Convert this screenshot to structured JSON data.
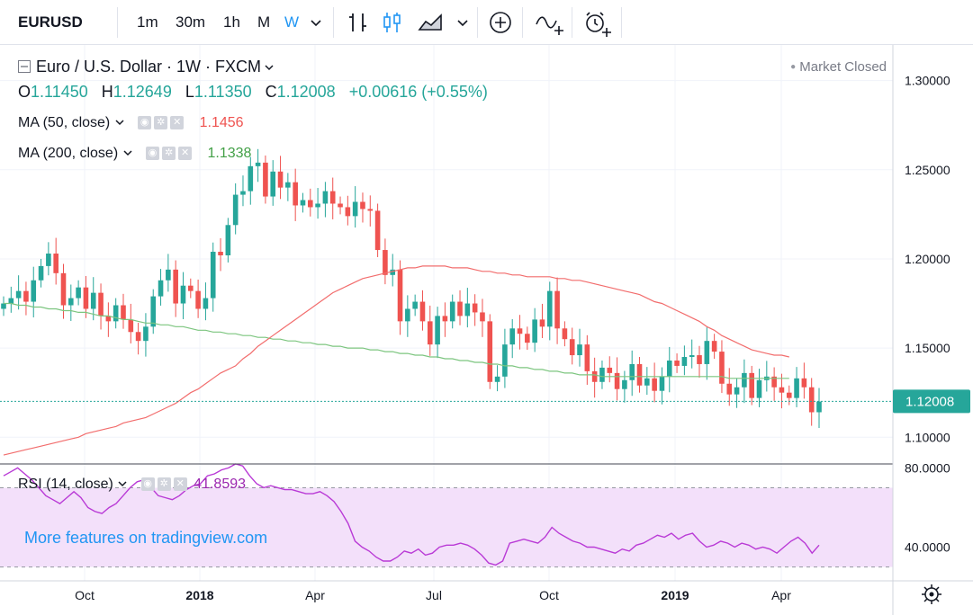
{
  "toolbar": {
    "symbol": "EURUSD",
    "intervals": [
      "1m",
      "30m",
      "1h",
      "M",
      "W"
    ],
    "active_interval": "W"
  },
  "legend": {
    "title": "Euro / U.S. Dollar · 1W · FXCM",
    "status": "Market Closed",
    "ohlc": {
      "o_label": "O",
      "o_value": "1.11450",
      "h_label": "H",
      "h_value": "1.12649",
      "l_label": "L",
      "l_value": "1.11350",
      "c_label": "C",
      "c_value": "1.12008",
      "change": "+0.00616 (+0.55%)"
    }
  },
  "indicators": [
    {
      "label": "MA (50, close)",
      "value": "1.1456",
      "color": "#ef5350"
    },
    {
      "label": "MA (200, close)",
      "value": "1.1338",
      "color": "#43a047"
    },
    {
      "label": "RSI (14, close)",
      "value": "41.8593",
      "color": "#9c27b0"
    }
  ],
  "watermark": "More features on tradingview.com",
  "colors": {
    "up": "#26a69a",
    "down": "#ef5350",
    "ma50": "#f26d6d",
    "ma200": "#7cc57f",
    "rsi": "#b93ad6",
    "rsi_band": "#f3e0fa",
    "last_price": "#26a69a"
  },
  "chart_data": [
    {
      "type": "candlestick",
      "title": "Euro / U.S. Dollar · 1W · FXCM",
      "x_tick_labels": [
        "Oct",
        "2018",
        "Apr",
        "Jul",
        "Oct",
        "2019",
        "Apr"
      ],
      "y_tick_labels": [
        "1.30000",
        "1.25000",
        "1.20000",
        "1.15000",
        "1.10000"
      ],
      "ylim": [
        1.085,
        1.32
      ],
      "last_price": "1.12008",
      "close": [
        1.175,
        1.178,
        1.182,
        1.176,
        1.188,
        1.196,
        1.203,
        1.192,
        1.174,
        1.178,
        1.184,
        1.172,
        1.181,
        1.168,
        1.165,
        1.174,
        1.166,
        1.159,
        1.154,
        1.162,
        1.179,
        1.188,
        1.194,
        1.175,
        1.185,
        1.182,
        1.172,
        1.178,
        1.204,
        1.202,
        1.219,
        1.236,
        1.238,
        1.252,
        1.254,
        1.235,
        1.249,
        1.24,
        1.243,
        1.23,
        1.233,
        1.229,
        1.231,
        1.238,
        1.231,
        1.229,
        1.224,
        1.232,
        1.228,
        1.227,
        1.205,
        1.191,
        1.194,
        1.165,
        1.172,
        1.176,
        1.165,
        1.152,
        1.168,
        1.165,
        1.176,
        1.168,
        1.175,
        1.17,
        1.165,
        1.131,
        1.134,
        1.152,
        1.161,
        1.158,
        1.153,
        1.166,
        1.162,
        1.182,
        1.161,
        1.155,
        1.146,
        1.152,
        1.137,
        1.131,
        1.139,
        1.136,
        1.127,
        1.132,
        1.141,
        1.129,
        1.133,
        1.126,
        1.134,
        1.143,
        1.14,
        1.145,
        1.146,
        1.141,
        1.154,
        1.148,
        1.13,
        1.124,
        1.128,
        1.136,
        1.122,
        1.132,
        1.134,
        1.128,
        1.125,
        1.122,
        1.133,
        1.128,
        1.114,
        1.12
      ],
      "ma50": [
        1.09,
        1.091,
        1.092,
        1.093,
        1.094,
        1.095,
        1.096,
        1.097,
        1.098,
        1.099,
        1.1,
        1.102,
        1.103,
        1.104,
        1.105,
        1.106,
        1.108,
        1.109,
        1.11,
        1.111,
        1.113,
        1.115,
        1.117,
        1.119,
        1.122,
        1.125,
        1.127,
        1.13,
        1.133,
        1.136,
        1.138,
        1.14,
        1.144,
        1.147,
        1.151,
        1.154,
        1.157,
        1.16,
        1.163,
        1.166,
        1.169,
        1.172,
        1.175,
        1.178,
        1.181,
        1.183,
        1.185,
        1.187,
        1.189,
        1.19,
        1.191,
        1.192,
        1.193,
        1.194,
        1.195,
        1.195,
        1.196,
        1.196,
        1.196,
        1.196,
        1.195,
        1.195,
        1.195,
        1.194,
        1.193,
        1.193,
        1.192,
        1.192,
        1.191,
        1.191,
        1.19,
        1.19,
        1.19,
        1.19,
        1.189,
        1.189,
        1.188,
        1.188,
        1.187,
        1.186,
        1.185,
        1.184,
        1.183,
        1.182,
        1.181,
        1.18,
        1.178,
        1.176,
        1.175,
        1.173,
        1.171,
        1.169,
        1.167,
        1.165,
        1.162,
        1.16,
        1.157,
        1.155,
        1.153,
        1.151,
        1.149,
        1.148,
        1.147,
        1.146,
        1.146,
        1.145
      ],
      "ma200": [
        1.175,
        1.175,
        1.174,
        1.174,
        1.173,
        1.173,
        1.172,
        1.172,
        1.171,
        1.171,
        1.17,
        1.17,
        1.169,
        1.168,
        1.168,
        1.167,
        1.166,
        1.166,
        1.165,
        1.164,
        1.164,
        1.163,
        1.163,
        1.162,
        1.162,
        1.161,
        1.16,
        1.16,
        1.159,
        1.159,
        1.158,
        1.158,
        1.157,
        1.157,
        1.156,
        1.156,
        1.155,
        1.155,
        1.154,
        1.154,
        1.153,
        1.153,
        1.152,
        1.152,
        1.151,
        1.151,
        1.15,
        1.15,
        1.15,
        1.149,
        1.149,
        1.148,
        1.148,
        1.147,
        1.147,
        1.146,
        1.146,
        1.145,
        1.145,
        1.144,
        1.144,
        1.143,
        1.143,
        1.142,
        1.142,
        1.141,
        1.141,
        1.14,
        1.14,
        1.139,
        1.139,
        1.138,
        1.138,
        1.137,
        1.137,
        1.136,
        1.136,
        1.135,
        1.135,
        1.135,
        1.134,
        1.134,
        1.134,
        1.134,
        1.134,
        1.134,
        1.134,
        1.134,
        1.134,
        1.134,
        1.134,
        1.134,
        1.134,
        1.134,
        1.134,
        1.134,
        1.134,
        1.133,
        1.133,
        1.133,
        1.133,
        1.133,
        1.133,
        1.133,
        1.133,
        1.133
      ]
    },
    {
      "type": "line",
      "title": "RSI (14, close)",
      "y_tick_labels": [
        "80.0000",
        "40.0000"
      ],
      "band": [
        30,
        70
      ],
      "ylim": [
        23,
        82
      ],
      "values": [
        76,
        78,
        80,
        77,
        74,
        70,
        66,
        64,
        62,
        65,
        68,
        65,
        60,
        58,
        57,
        60,
        62,
        66,
        70,
        73,
        74,
        70,
        66,
        65,
        64,
        66,
        69,
        71,
        72,
        76,
        77,
        79,
        80,
        82,
        81,
        76,
        72,
        70,
        71,
        70,
        69,
        69,
        68,
        67,
        67,
        68,
        66,
        63,
        58,
        52,
        43,
        40,
        38,
        35,
        33,
        33,
        35,
        38,
        37,
        39,
        36,
        37,
        40,
        41,
        41,
        42,
        41,
        39,
        36,
        32,
        31,
        33,
        42,
        43,
        44,
        43,
        42,
        45,
        50,
        47,
        45,
        43,
        42,
        40,
        40,
        39,
        38,
        37,
        39,
        38,
        41,
        42,
        44,
        46,
        45,
        47,
        44,
        46,
        47,
        43,
        40,
        41,
        43,
        42,
        40,
        42,
        41,
        39,
        40,
        39,
        37,
        40,
        43,
        45,
        42,
        37,
        41
      ],
      "last_value": "41.8593"
    }
  ]
}
